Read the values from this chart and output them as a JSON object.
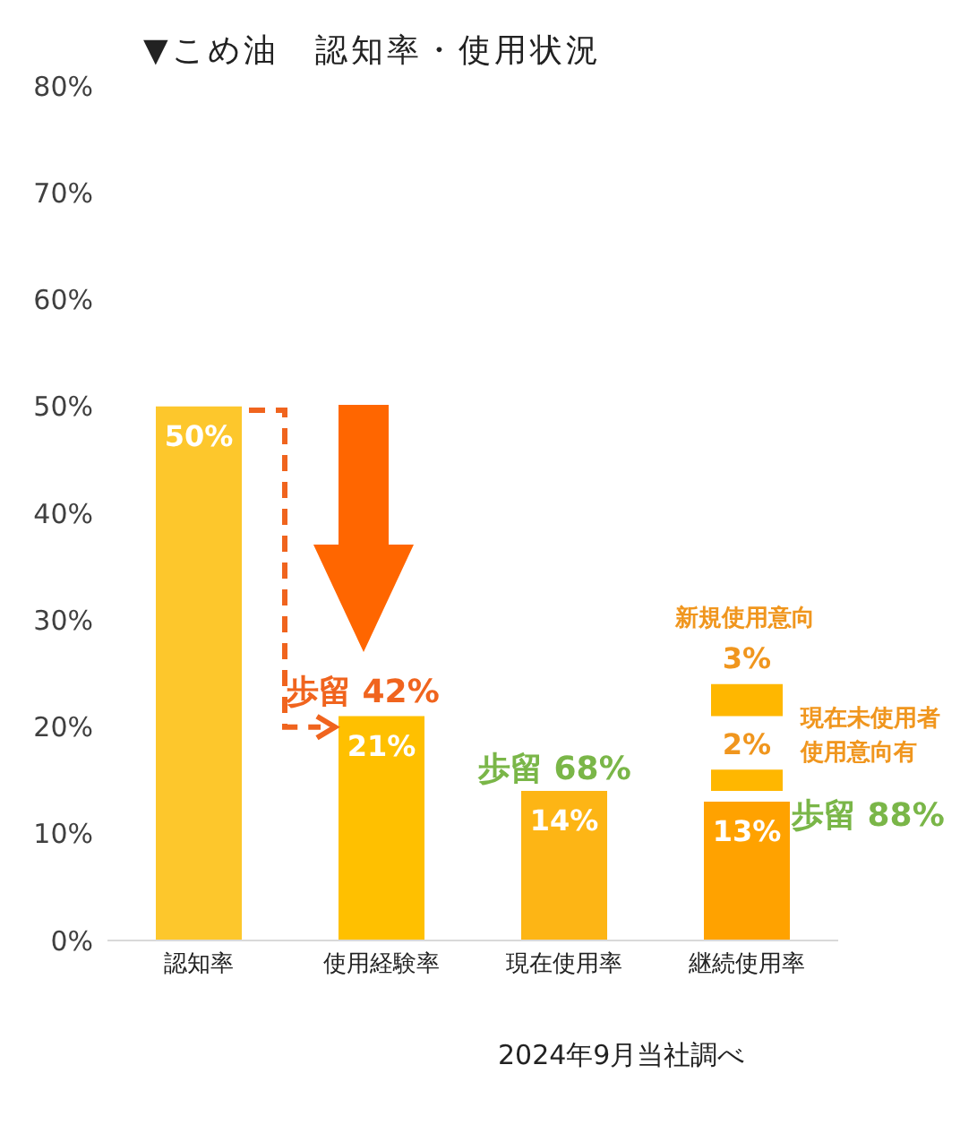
{
  "chart_data": {
    "type": "bar",
    "title": "▼こめ油　認知率・使用状況",
    "categories": [
      "認知率",
      "使用経験率",
      "現在使用率",
      "継続使用率"
    ],
    "series": [
      {
        "values": [
          50,
          21,
          14,
          13
        ],
        "colors": [
          "#fdc72c",
          "#ffc000",
          "#fdb515",
          "#ffa200"
        ],
        "value_labels": [
          "50%",
          "21%",
          "14%",
          "13%"
        ]
      },
      {
        "name": "現在未使用者使用意向有",
        "color": "#ffb700",
        "values": [
          null,
          null,
          null,
          2
        ],
        "base": [
          null,
          null,
          null,
          14
        ],
        "value_labels": [
          null,
          null,
          null,
          "2%"
        ]
      },
      {
        "name": "新規使用意向",
        "color": "#ffb700",
        "values": [
          null,
          null,
          null,
          3
        ],
        "base": [
          null,
          null,
          null,
          21
        ],
        "value_labels": [
          null,
          null,
          null,
          "3%"
        ]
      }
    ],
    "ylim": [
      0,
      80
    ],
    "yticks": [
      {
        "value": 0,
        "label": "0%"
      },
      {
        "value": 10,
        "label": "10%"
      },
      {
        "value": 20,
        "label": "20%"
      },
      {
        "value": 30,
        "label": "30%"
      },
      {
        "value": 40,
        "label": "40%"
      },
      {
        "value": 50,
        "label": "50%"
      },
      {
        "value": 60,
        "label": "60%"
      },
      {
        "value": 70,
        "label": "70%"
      },
      {
        "value": 80,
        "label": "80%"
      }
    ],
    "grid": false,
    "legend": false,
    "annotations": [
      "歩留 42%",
      "歩留 68%",
      "歩留 88%",
      "2024年9月当社調べ"
    ]
  }
}
